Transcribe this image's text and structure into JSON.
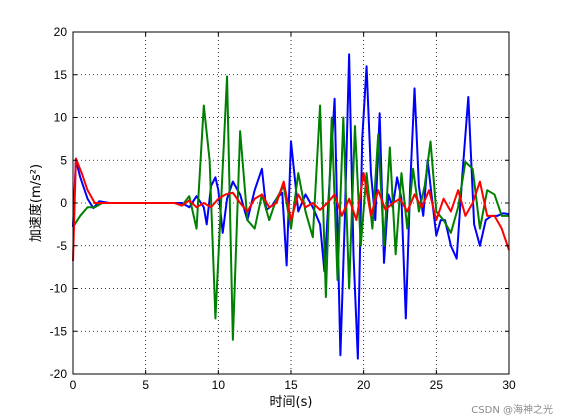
{
  "chart_data": {
    "type": "line",
    "title": "",
    "xlabel": "时间(s)",
    "ylabel": "加速度(m/s²)",
    "xlim": [
      0,
      30
    ],
    "ylim": [
      -20,
      20
    ],
    "xticks": [
      0,
      5,
      10,
      15,
      20,
      25,
      30
    ],
    "yticks": [
      -20,
      -15,
      -10,
      -5,
      0,
      5,
      10,
      15,
      20
    ],
    "grid": true,
    "legend": "none",
    "series": [
      {
        "color": "#0000ff",
        "x": [
          0,
          0.2,
          0.5,
          1.0,
          1.4,
          1.8,
          2.5,
          7.5,
          8.0,
          8.5,
          9.0,
          9.2,
          9.5,
          9.8,
          10.0,
          10.3,
          10.6,
          11.0,
          11.5,
          12.0,
          12.5,
          13.0,
          13.3,
          13.7,
          14.0,
          14.4,
          14.7,
          15.0,
          15.5,
          16.0,
          16.5,
          17.0,
          17.3,
          17.6,
          18.0,
          18.4,
          18.7,
          19.0,
          19.3,
          19.6,
          19.9,
          20.2,
          20.5,
          20.8,
          21.1,
          21.4,
          21.7,
          22.0,
          22.3,
          22.6,
          22.9,
          23.2,
          23.5,
          23.8,
          24.1,
          24.4,
          24.7,
          25.0,
          25.3,
          25.6,
          26.0,
          26.4,
          26.8,
          27.2,
          27.6,
          28.0,
          28.4,
          28.8,
          29.2,
          29.6,
          30.0
        ],
        "values": [
          -2.8,
          5.0,
          3.0,
          0.5,
          -0.6,
          0.2,
          0.0,
          0.0,
          -0.5,
          0.8,
          -0.5,
          -2.5,
          2.0,
          3.0,
          1.5,
          -3.5,
          0.5,
          2.5,
          1.0,
          -2.0,
          1.5,
          4.0,
          -0.8,
          -0.3,
          0.5,
          1.2,
          -7.3,
          7.2,
          -1.0,
          1.0,
          -0.5,
          -2.5,
          -8.0,
          1.0,
          12.2,
          -17.8,
          -2.0,
          17.4,
          -6.0,
          -18.2,
          7.5,
          16.0,
          3.5,
          -2.0,
          10.5,
          -7.0,
          1.0,
          -0.5,
          3.0,
          0.5,
          -13.5,
          2.0,
          13.4,
          2.0,
          -1.5,
          5.0,
          0.5,
          -3.8,
          -2.0,
          -2.0,
          -5.0,
          -6.5,
          3.5,
          12.4,
          -2.5,
          -5.0,
          -2.0,
          -1.5,
          -1.5,
          -1.2,
          -1.3
        ]
      },
      {
        "color": "#008000",
        "x": [
          0,
          0.5,
          1.0,
          1.5,
          2.0,
          7.0,
          7.5,
          8.0,
          8.5,
          9.0,
          9.4,
          9.8,
          10.2,
          10.6,
          11.0,
          11.5,
          12.0,
          12.5,
          13.0,
          13.5,
          14.0,
          14.5,
          15.0,
          15.5,
          16.0,
          16.5,
          17.0,
          17.4,
          17.8,
          18.2,
          18.6,
          19.0,
          19.4,
          19.8,
          20.2,
          20.6,
          21.0,
          21.4,
          21.8,
          22.2,
          22.6,
          23.0,
          23.4,
          23.8,
          24.2,
          24.6,
          25.0,
          25.5,
          26.0,
          26.5,
          27.0,
          27.5,
          28.0,
          28.5,
          29.0,
          29.5,
          30.0
        ],
        "values": [
          -2.8,
          -1.5,
          -0.5,
          -0.5,
          0.0,
          0.0,
          -0.3,
          0.8,
          -3.0,
          11.4,
          5.0,
          -13.5,
          0.5,
          14.8,
          -16.0,
          8.4,
          -2.0,
          -3.0,
          1.0,
          -2.0,
          0.5,
          2.0,
          -3.0,
          3.5,
          -1.0,
          -4.0,
          11.4,
          -11.0,
          10.0,
          -9.0,
          10.0,
          -10.0,
          9.0,
          -5.0,
          3.5,
          -3.0,
          8.0,
          -5.0,
          6.5,
          -6.0,
          3.5,
          -3.0,
          4.0,
          -1.0,
          2.0,
          7.2,
          -1.0,
          -2.0,
          -3.5,
          -0.5,
          4.8,
          4.0,
          -3.0,
          1.5,
          1.0,
          -1.5,
          -1.5
        ]
      },
      {
        "color": "#ff0000",
        "x": [
          0,
          0.2,
          0.6,
          1.0,
          1.5,
          2.0,
          6.0,
          7.0,
          7.5,
          8.0,
          8.5,
          9.0,
          9.5,
          10.0,
          10.5,
          11.0,
          11.5,
          12.0,
          12.5,
          13.0,
          13.5,
          14.0,
          14.5,
          15.0,
          15.5,
          16.0,
          16.5,
          17.0,
          17.5,
          18.0,
          18.5,
          19.0,
          19.5,
          20.0,
          20.5,
          21.0,
          21.5,
          22.0,
          22.5,
          23.0,
          23.5,
          24.0,
          24.5,
          25.0,
          25.5,
          26.0,
          26.5,
          27.0,
          27.5,
          28.0,
          28.5,
          29.0,
          29.5,
          30.0
        ],
        "values": [
          -6.8,
          5.2,
          3.5,
          1.5,
          0.0,
          0.0,
          0.0,
          0.0,
          -0.3,
          0.3,
          -0.5,
          0.0,
          -0.5,
          0.5,
          1.0,
          1.2,
          0.0,
          -1.0,
          0.5,
          1.0,
          -0.5,
          0.0,
          2.5,
          -2.0,
          1.0,
          -0.5,
          0.0,
          -0.8,
          0.0,
          1.0,
          -1.5,
          0.5,
          -2.0,
          3.5,
          -1.5,
          1.5,
          -0.8,
          0.0,
          0.5,
          -1.0,
          1.0,
          -0.5,
          1.5,
          -2.0,
          0.5,
          -1.0,
          1.5,
          -1.5,
          0.0,
          2.5,
          -1.5,
          -1.5,
          -3.0,
          -5.5
        ]
      }
    ]
  },
  "watermark": "CSDN @海神之光"
}
